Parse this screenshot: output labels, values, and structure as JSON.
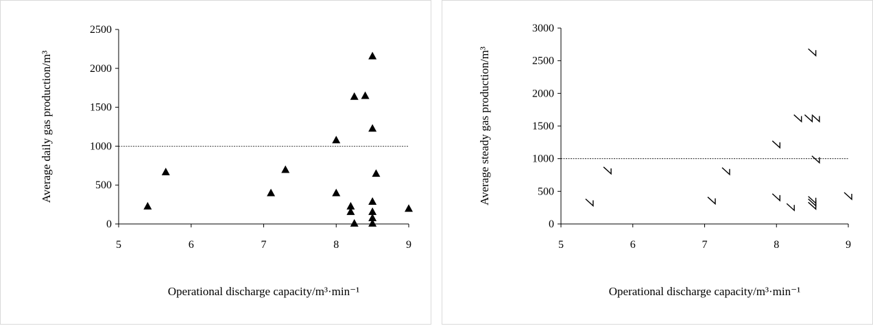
{
  "chart_data": [
    {
      "type": "scatter",
      "title": "",
      "xlabel": "Operational discharge capacity/m³·min⁻¹",
      "ylabel": "Average daily gas production/m³",
      "xlim": [
        5,
        9
      ],
      "ylim": [
        0,
        2500
      ],
      "xticks": [
        "5",
        "6",
        "7",
        "8",
        "9"
      ],
      "yticks": [
        "0",
        "500",
        "1000",
        "1500",
        "2000",
        "2500"
      ],
      "marker": "triangle",
      "reference_line_y": 1000,
      "grid": false,
      "points": [
        {
          "x": 5.4,
          "y": 230
        },
        {
          "x": 5.65,
          "y": 670
        },
        {
          "x": 7.1,
          "y": 400
        },
        {
          "x": 7.3,
          "y": 700
        },
        {
          "x": 8.0,
          "y": 1080
        },
        {
          "x": 8.0,
          "y": 400
        },
        {
          "x": 8.2,
          "y": 230
        },
        {
          "x": 8.2,
          "y": 160
        },
        {
          "x": 8.25,
          "y": 1640
        },
        {
          "x": 8.25,
          "y": 10
        },
        {
          "x": 8.4,
          "y": 1650
        },
        {
          "x": 8.5,
          "y": 2160
        },
        {
          "x": 8.5,
          "y": 1230
        },
        {
          "x": 8.5,
          "y": 290
        },
        {
          "x": 8.5,
          "y": 160
        },
        {
          "x": 8.5,
          "y": 80
        },
        {
          "x": 8.5,
          "y": 10
        },
        {
          "x": 8.55,
          "y": 650
        },
        {
          "x": 9.0,
          "y": 200
        }
      ]
    },
    {
      "type": "scatter",
      "title": "",
      "xlabel": "Operational discharge capacity/m³·min⁻¹",
      "ylabel": "Average steady gas production/m³",
      "xlim": [
        5,
        9
      ],
      "ylim": [
        0,
        3000
      ],
      "xticks": [
        "5",
        "6",
        "7",
        "8",
        "9"
      ],
      "yticks": [
        "0",
        "500",
        "1000",
        "1500",
        "2000",
        "2500",
        "3000"
      ],
      "marker": "corner",
      "reference_line_y": 1000,
      "grid": false,
      "points": [
        {
          "x": 5.4,
          "y": 330
        },
        {
          "x": 5.65,
          "y": 820
        },
        {
          "x": 7.1,
          "y": 360
        },
        {
          "x": 7.3,
          "y": 810
        },
        {
          "x": 8.0,
          "y": 1220
        },
        {
          "x": 8.0,
          "y": 410
        },
        {
          "x": 8.2,
          "y": 260
        },
        {
          "x": 8.3,
          "y": 1620
        },
        {
          "x": 8.45,
          "y": 1620
        },
        {
          "x": 8.55,
          "y": 1620
        },
        {
          "x": 8.5,
          "y": 2630
        },
        {
          "x": 8.55,
          "y": 990
        },
        {
          "x": 8.5,
          "y": 370
        },
        {
          "x": 8.5,
          "y": 330
        },
        {
          "x": 8.5,
          "y": 280
        },
        {
          "x": 9.0,
          "y": 430
        }
      ]
    }
  ]
}
